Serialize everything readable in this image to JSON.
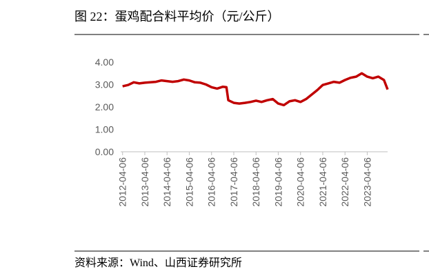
{
  "chart_data": {
    "type": "line",
    "title": "图 22：蛋鸡配合料平均价（元/公斤）",
    "source": "资料来源：Wind、山西证券研究所",
    "x": [
      "2012-04-06",
      "2012-07-06",
      "2012-10-06",
      "2013-01-06",
      "2013-04-06",
      "2013-07-06",
      "2013-10-06",
      "2014-01-06",
      "2014-04-06",
      "2014-07-06",
      "2014-10-06",
      "2015-01-06",
      "2015-04-06",
      "2015-07-06",
      "2015-10-06",
      "2016-01-06",
      "2016-04-06",
      "2016-07-06",
      "2016-10-06",
      "2016-12-06",
      "2017-01-06",
      "2017-04-06",
      "2017-07-06",
      "2017-10-06",
      "2018-01-06",
      "2018-04-06",
      "2018-07-06",
      "2018-10-06",
      "2019-01-06",
      "2019-04-06",
      "2019-07-06",
      "2019-10-06",
      "2020-01-06",
      "2020-04-06",
      "2020-07-06",
      "2020-10-06",
      "2021-01-06",
      "2021-04-06",
      "2021-07-06",
      "2021-10-06",
      "2022-01-06",
      "2022-04-06",
      "2022-07-06",
      "2022-10-06",
      "2023-01-06",
      "2023-04-06",
      "2023-07-06",
      "2023-10-06",
      "2024-01-06",
      "2024-03-06"
    ],
    "series": [
      {
        "name": "蛋鸡配合料平均价",
        "color": "#c00000",
        "values": [
          2.92,
          2.98,
          3.1,
          3.05,
          3.08,
          3.1,
          3.12,
          3.18,
          3.15,
          3.12,
          3.15,
          3.22,
          3.18,
          3.1,
          3.08,
          3.0,
          2.88,
          2.82,
          2.9,
          2.88,
          2.3,
          2.18,
          2.15,
          2.18,
          2.22,
          2.28,
          2.22,
          2.3,
          2.35,
          2.15,
          2.08,
          2.25,
          2.3,
          2.22,
          2.35,
          2.55,
          2.75,
          2.98,
          3.05,
          3.12,
          3.08,
          3.2,
          3.3,
          3.35,
          3.5,
          3.35,
          3.28,
          3.35,
          3.2,
          2.78
        ]
      }
    ],
    "xlim": [
      "2012-03-06",
      "2024-03-06"
    ],
    "xticks": [
      "2012-04-06",
      "2013-04-06",
      "2014-04-06",
      "2015-04-06",
      "2016-04-06",
      "2017-04-06",
      "2018-04-06",
      "2019-04-06",
      "2020-04-06",
      "2021-04-06",
      "2022-04-06",
      "2023-04-06"
    ],
    "ylim": [
      0,
      4
    ],
    "yticks": [
      {
        "value": 0,
        "label": "0.00"
      },
      {
        "value": 1,
        "label": "1.00"
      },
      {
        "value": 2,
        "label": "2.00"
      },
      {
        "value": 3,
        "label": "3.00"
      },
      {
        "value": 4,
        "label": "4.00"
      }
    ],
    "grid": false
  }
}
